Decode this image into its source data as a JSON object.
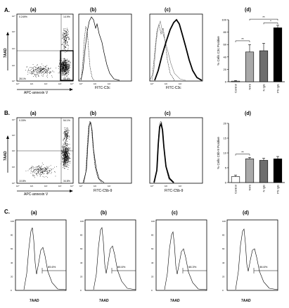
{
  "figure": {
    "rowA": {
      "row_label": "A.",
      "panels": [
        "(a)",
        "(b)",
        "(c)",
        "(d)"
      ],
      "scatter": {
        "x_label": "APC-annexin V",
        "y_label": "7AAD",
        "quadrants": {
          "ul": "0.249%",
          "ur": "14.9%",
          "ll": "28.1%",
          "lr": "56.8%"
        }
      },
      "hist_b_xlabel": "FITC-C3c",
      "hist_c_xlabel": "FITC-C3c"
    },
    "rowB": {
      "row_label": "B.",
      "panels": [
        "(a)",
        "(b)",
        "(c)",
        "(d)"
      ],
      "scatter": {
        "x_label": "APC-annexin V",
        "y_label": "7AAD",
        "quadrants": {
          "ul": "0.33%",
          "ur": "54.1%",
          "ll": "10.8%",
          "lr": "34.8%"
        }
      },
      "hist_b_xlabel": "FITC-C5b-9",
      "hist_c_xlabel": "FITC-C5b-9"
    },
    "rowC": {
      "row_label": "C.",
      "panels": [
        "(a)",
        "(b)",
        "(c)",
        "(d)"
      ],
      "x_label": "7AAD",
      "gate_values": [
        "65.6%",
        "66.6%",
        "68.3%",
        "56.6%"
      ]
    }
  },
  "chart_data": [
    {
      "type": "bar",
      "panel": "A(d)",
      "ylabel": "% Cells C3c Positive",
      "categories": [
        "Control",
        "NHS",
        "N IgG",
        "PS IgG"
      ],
      "values": [
        1,
        48,
        50,
        87
      ],
      "errors": [
        1,
        12,
        12,
        4
      ],
      "bar_colors": [
        "#ffffff",
        "#a9a9a9",
        "#6e6e6e",
        "#000000"
      ],
      "ylim": [
        0,
        100
      ],
      "yticks": [
        0,
        20,
        40,
        60,
        80,
        100
      ],
      "significance": [
        "**",
        "**",
        "*"
      ]
    },
    {
      "type": "bar",
      "panel": "B(d)",
      "ylabel": "% Cells C5b-9 Positive",
      "categories": [
        "Control",
        "NHS",
        "N IgG",
        "PS IgG"
      ],
      "values": [
        2,
        8,
        7.5,
        8
      ],
      "errors": [
        0.5,
        0.5,
        0.7,
        0.8
      ],
      "bar_colors": [
        "#ffffff",
        "#a9a9a9",
        "#6e6e6e",
        "#000000"
      ],
      "ylim": [
        0,
        20
      ],
      "yticks": [
        0,
        5,
        10,
        15,
        20
      ],
      "significance": [
        "**"
      ]
    }
  ]
}
